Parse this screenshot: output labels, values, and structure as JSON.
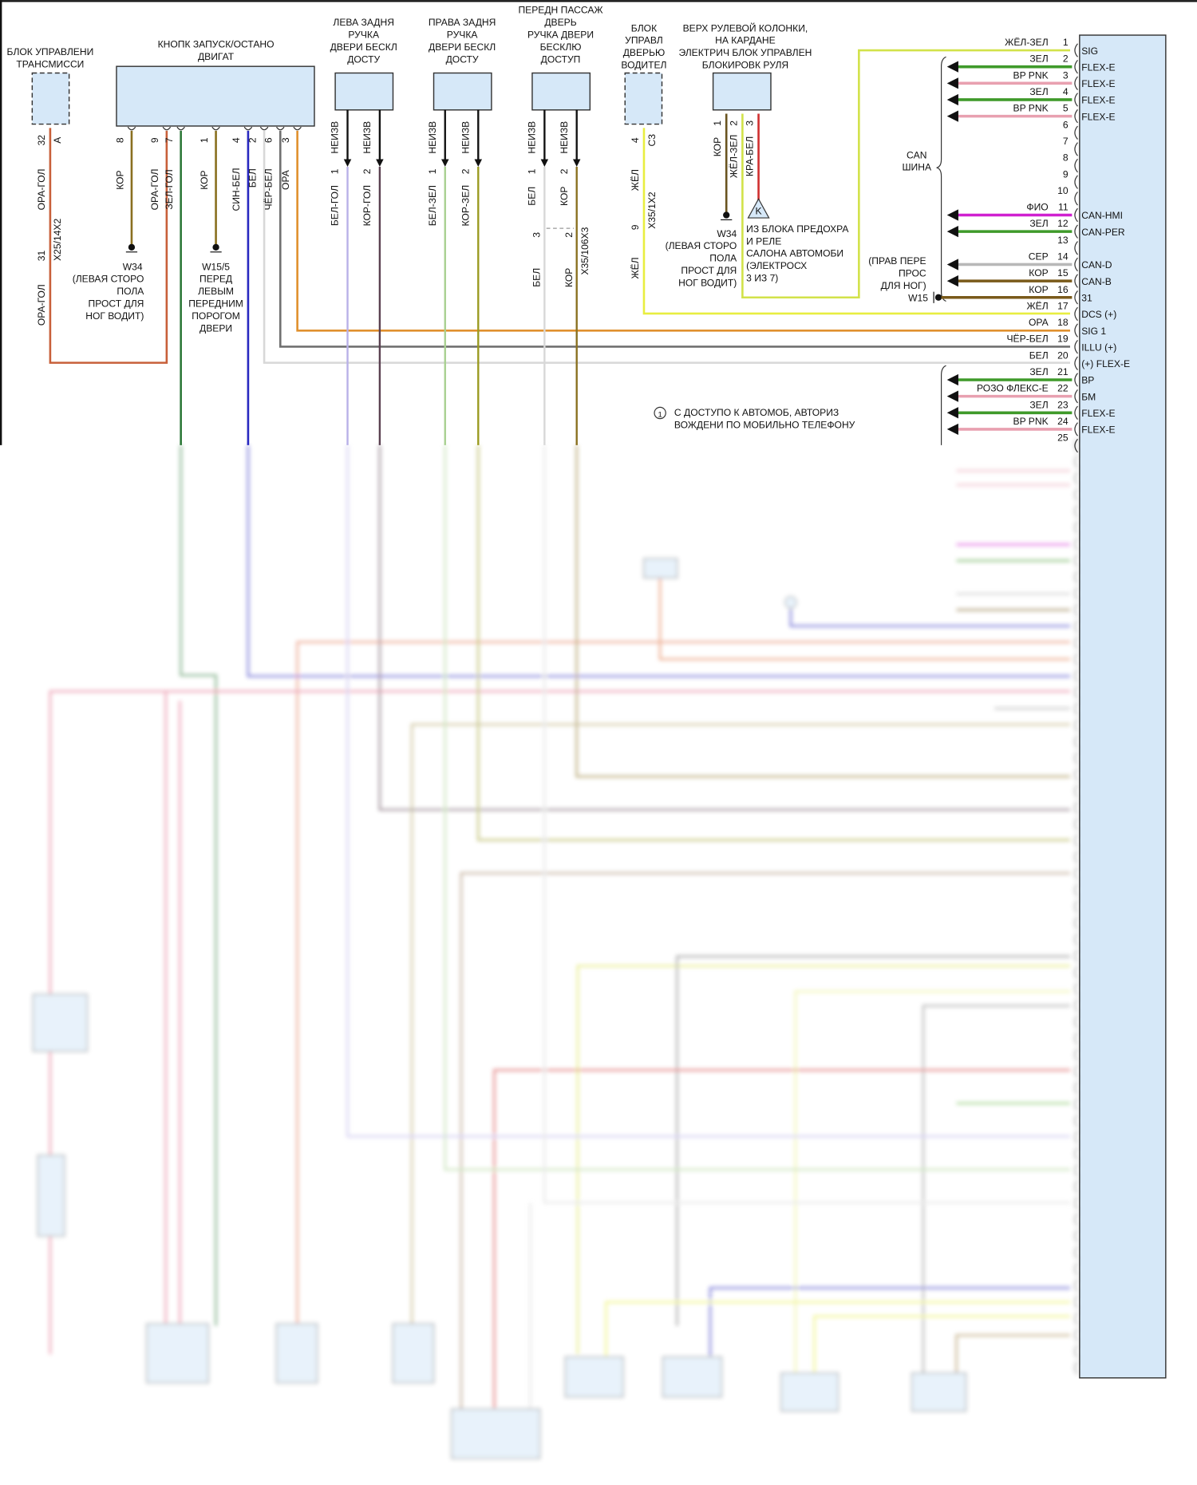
{
  "colors": {
    "box_fill": "#d6e8f8",
    "yellow": "#e8ee40",
    "yellow_green": "#d2e24a",
    "green": "#3f9a2a",
    "pink": "#e8a0b0",
    "magenta": "#d020d0",
    "gray": "#b8b8b8",
    "brown": "#7a5a1a",
    "orange": "#e0902e",
    "orange_red": "#c8603a",
    "blue": "#2828c0",
    "red": "#d03030",
    "dark_gray": "#707070",
    "light_gray": "#d8d8d8"
  },
  "blocks": {
    "transmission": {
      "line1": "БЛОК УПРАВЛЕНИ",
      "line2": "ТРАНСМИССИ",
      "pin_a": "32",
      "pin_b": "A"
    },
    "start_stop": {
      "line1": "КНОПК ЗАПУСК/ОСТАНО",
      "line2": "ДВИГАТ",
      "pins": [
        "8",
        "9",
        "7",
        "1",
        "4",
        "2",
        "6",
        "3"
      ],
      "wires": [
        "КОР",
        "ОРА-ГОЛ",
        "ЗЕЛ-ГОЛ",
        "КОР",
        "СИН-БЕЛ",
        "БЕЛ",
        "ЧЁР-БЕЛ",
        "ОРА"
      ]
    },
    "rear_left_handle": {
      "lines": [
        "ЛЕВА ЗАДНЯ",
        "РУЧКА",
        "ДВЕРИ БЕСКЛ",
        "ДОСТУ"
      ],
      "pins": [
        "1",
        "2"
      ],
      "pin_labels": [
        "НЕИЗВ",
        "НЕИЗВ"
      ],
      "wires": [
        "БЕЛ-ГОЛ",
        "КОР-ГОЛ"
      ]
    },
    "rear_right_handle": {
      "lines": [
        "ПРАВА ЗАДНЯ",
        "РУЧКА",
        "ДВЕРИ БЕСКЛ",
        "ДОСТУ"
      ],
      "pins": [
        "1",
        "2"
      ],
      "pin_labels": [
        "НЕИЗВ",
        "НЕИЗВ"
      ],
      "wires": [
        "БЕЛ-ЗЕЛ",
        "КОР-ЗЕЛ"
      ]
    },
    "front_passenger_handle": {
      "lines": [
        "ПЕРЕДН ПАССАЖ",
        "ДВЕРЬ",
        "РУЧКА ДВЕРИ",
        "БЕСКЛЮ",
        "ДОСТУП"
      ],
      "pins": [
        "1",
        "2"
      ],
      "pin_labels": [
        "НЕИЗВ",
        "НЕИЗВ"
      ],
      "wires": [
        "БЕЛ",
        "КОР"
      ],
      "connector": "X35/106X3",
      "connector_pins": [
        "3",
        "2"
      ],
      "wires_after": [
        "БЕЛ",
        "КОР"
      ]
    },
    "driver_door": {
      "lines": [
        "БЛОК",
        "УПРАВЛ",
        "ДВЕРЬЮ",
        "ВОДИТЕЛ"
      ],
      "pin": "4",
      "pin_code": "C3",
      "wire": "ЖЁЛ",
      "connector": "X35/1X2",
      "connector_pin": "9",
      "wire_after": "ЖЁЛ"
    },
    "steering_lock": {
      "lines": [
        "ВЕРХ РУЛЕВОЙ КОЛОНКИ,",
        "НА КАРДАНЕ",
        "ЭЛЕКТРИЧ БЛОК УПРАВЛЕН",
        "БЛОКИРОВК РУЛЯ"
      ],
      "pins": [
        "1",
        "2",
        "3"
      ],
      "wires": [
        "КОР",
        "ЖЁЛ-ЗЕЛ",
        "КРА-БЕЛ"
      ],
      "fuse_symbol": "K",
      "fuse_note": [
        "ИЗ БЛОКА ПРЕДОХРА",
        "И РЕЛЕ",
        "САЛОНА АВТОМОБИ",
        "(ЭЛЕКТРОСХ",
        "3 ИЗ 7)"
      ]
    }
  },
  "transmission_connector": {
    "name": "X25/14X2",
    "pin": "31",
    "wire_top": "ОРА-ГОЛ",
    "wire_bottom": "ОРА-ГОЛ"
  },
  "grounds": {
    "w34_left": {
      "id": "W34",
      "lines": [
        "(ЛЕВАЯ СТОРО",
        "ПОЛА",
        "ПРОСТ ДЛЯ",
        "НОГ ВОДИТ)"
      ]
    },
    "w15_5": {
      "id": "W15/5",
      "lines": [
        "ПЕРЕД",
        "ЛЕВЫМ",
        "ПЕРЕДНИМ",
        "ПОРОГОМ",
        "ДВЕРИ"
      ]
    },
    "w34_steer": {
      "id": "W34",
      "lines": [
        "(ЛЕВАЯ СТОРО",
        "ПОЛА",
        "ПРОСТ ДЛЯ",
        "НОГ ВОДИТ)"
      ]
    },
    "w15": {
      "id": "W15",
      "lines": [
        "(ПРАВ ПЕРЕ",
        "ПРОС",
        "ДЛЯ НОГ)"
      ]
    }
  },
  "can_bus": {
    "line1": "CAN",
    "line2": "ШИНА"
  },
  "note": {
    "marker": "1",
    "line1": "С ДОСТУПО К АВТОМОБ, АВТОРИЗ",
    "line2": "ВОЖДЕНИ ПО МОБИЛЬНО ТЕЛЕФОНУ"
  },
  "module_pins": [
    {
      "num": "1",
      "wire": "ЖЁЛ-ЗЕЛ",
      "name": "SIG",
      "color": "#d2e24a",
      "from": "steering_lock"
    },
    {
      "num": "2",
      "wire": "ЗЕЛ",
      "name": "FLEX-E",
      "color": "#3f9a2a",
      "arrow": true
    },
    {
      "num": "3",
      "wire": "BP PNK",
      "name": "FLEX-E",
      "color": "#e8a0b0",
      "arrow": true
    },
    {
      "num": "4",
      "wire": "ЗЕЛ",
      "name": "FLEX-E",
      "color": "#3f9a2a",
      "arrow": true
    },
    {
      "num": "5",
      "wire": "BP PNK",
      "name": "FLEX-E",
      "color": "#e8a0b0",
      "arrow": true
    },
    {
      "num": "6"
    },
    {
      "num": "7"
    },
    {
      "num": "8"
    },
    {
      "num": "9"
    },
    {
      "num": "10"
    },
    {
      "num": "11",
      "wire": "ФИО",
      "name": "CAN-HMI",
      "color": "#d020d0",
      "arrow": true
    },
    {
      "num": "12",
      "wire": "ЗЕЛ",
      "name": "CAN-PER",
      "color": "#3f9a2a",
      "arrow": true
    },
    {
      "num": "13"
    },
    {
      "num": "14",
      "wire": "СЕР",
      "name": "CAN-D",
      "color": "#b8b8b8",
      "arrow": true
    },
    {
      "num": "15",
      "wire": "КОР",
      "name": "CAN-B",
      "color": "#7a5a1a",
      "arrow": true
    },
    {
      "num": "16",
      "wire": "КОР",
      "name": "31",
      "color": "#7a5a1a",
      "ground": true
    },
    {
      "num": "17",
      "wire": "ЖЁЛ",
      "name": "DCS (+)",
      "color": "#e8ee40",
      "from": "driver_door"
    },
    {
      "num": "18",
      "wire": "ОРА",
      "name": "SIG 1",
      "color": "#e0902e",
      "from": "start_stop"
    },
    {
      "num": "19",
      "wire": "ЧЁР-БЕЛ",
      "name": "ILLU (+)",
      "color": "#707070",
      "from": "start_stop"
    },
    {
      "num": "20",
      "wire": "БЕЛ",
      "name": "(+) FLEX-E",
      "color": "#d8d8d8",
      "from": "start_stop"
    },
    {
      "num": "21",
      "wire": "ЗЕЛ",
      "name": "BP",
      "color": "#3f9a2a",
      "arrow": true
    },
    {
      "num": "22",
      "wire": "РОЗО ФЛЕКС-Е",
      "name": "БМ",
      "color": "#e8a0b0",
      "arrow": true
    },
    {
      "num": "23",
      "wire": "ЗЕЛ",
      "name": "FLEX-E",
      "color": "#3f9a2a",
      "arrow": true
    },
    {
      "num": "24",
      "wire": "BP PNK",
      "name": "FLEX-E",
      "color": "#e8a0b0",
      "arrow": true
    },
    {
      "num": "25"
    }
  ]
}
